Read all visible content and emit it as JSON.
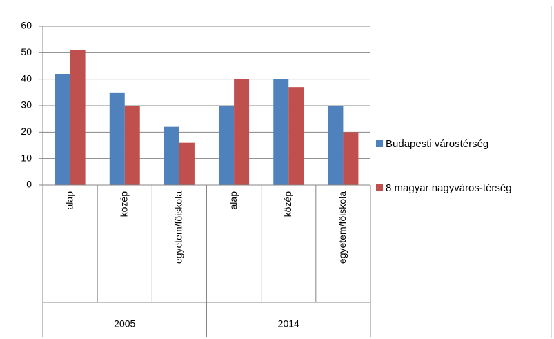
{
  "chart_data": {
    "type": "bar",
    "groups": [
      "2005",
      "2014"
    ],
    "categories": [
      "alap",
      "közép",
      "egyetem/főiskola",
      "alap",
      "közép",
      "egyetem/főiskola"
    ],
    "series": [
      {
        "name": "Budapesti várostérség",
        "color": "#4f81bd",
        "values": [
          42,
          35,
          22,
          30,
          40,
          30
        ]
      },
      {
        "name": "8 magyar nagyváros-térség",
        "color": "#c0504d",
        "values": [
          51,
          30,
          16,
          40,
          37,
          20
        ]
      }
    ],
    "ylim": [
      0,
      60
    ],
    "yticks": [
      0,
      10,
      20,
      30,
      40,
      50,
      60
    ],
    "grid": true,
    "legend": "right"
  }
}
